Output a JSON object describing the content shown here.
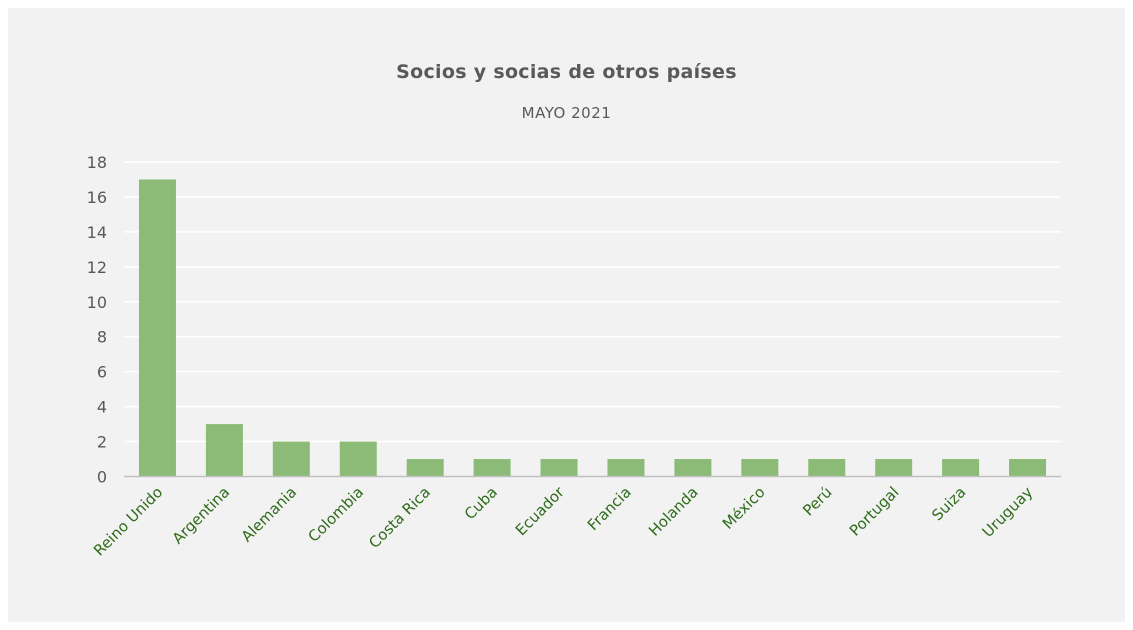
{
  "chart_data": {
    "type": "bar",
    "title": "Socios y socias de otros países",
    "subtitle": "MAYO 2021",
    "categories": [
      "Reino Unido",
      "Argentina",
      "Alemania",
      "Colombia",
      "Costa Rica",
      "Cuba",
      "Ecuador",
      "Francia",
      "Holanda",
      "México",
      "Perú",
      "Portugal",
      "Suiza",
      "Uruguay"
    ],
    "values": [
      17,
      3,
      2,
      2,
      1,
      1,
      1,
      1,
      1,
      1,
      1,
      1,
      1,
      1
    ],
    "ylim": [
      0,
      18
    ],
    "yticks": [
      0,
      2,
      4,
      6,
      8,
      10,
      12,
      14,
      16,
      18
    ],
    "grid": true,
    "colors": {
      "bar": "#8cbb78",
      "x_tick_label": "#2e6b1a",
      "grid": "#ffffff",
      "axis": "#bfbfbf",
      "background": "#f2f2f2"
    }
  }
}
